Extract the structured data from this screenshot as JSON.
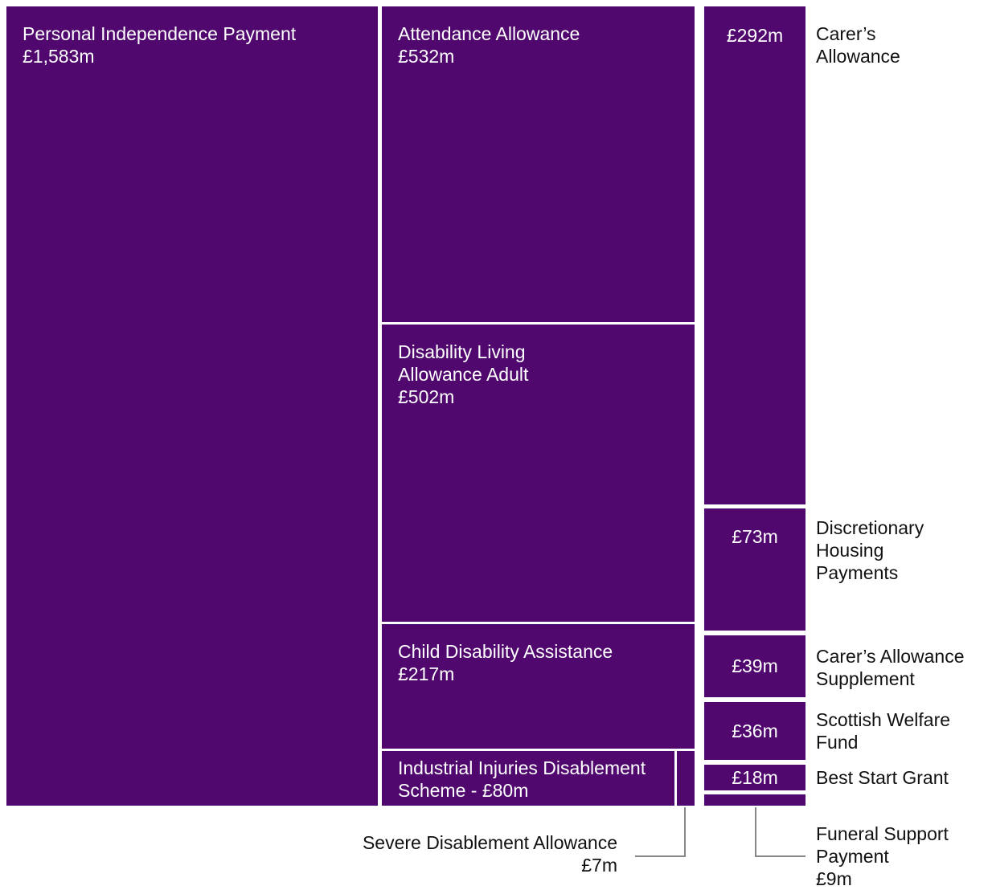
{
  "chart_data": {
    "type": "treemap",
    "categories": [
      "Personal Independence Payment",
      "Attendance Allowance",
      "Disability Living Allowance Adult",
      "Child Disability Assistance",
      "Industrial Injuries Disablement Scheme",
      "Severe Disablement Allowance",
      "Carer’s Allowance",
      "Discretionary Housing Payments",
      "Carer’s Allowance Supplement",
      "Scottish Welfare Fund",
      "Best Start Grant",
      "Funeral Support Payment"
    ],
    "values": [
      1583,
      532,
      502,
      217,
      80,
      7,
      292,
      73,
      39,
      36,
      18,
      9
    ],
    "value_labels": [
      "£1,583m",
      "£532m",
      "£502m",
      "£217m",
      "£80m",
      "£7m",
      "£292m",
      "£73m",
      "£39m",
      "£36m",
      "£18m",
      "£9m"
    ],
    "inline_separator": " - ",
    "color": "#50086f"
  }
}
